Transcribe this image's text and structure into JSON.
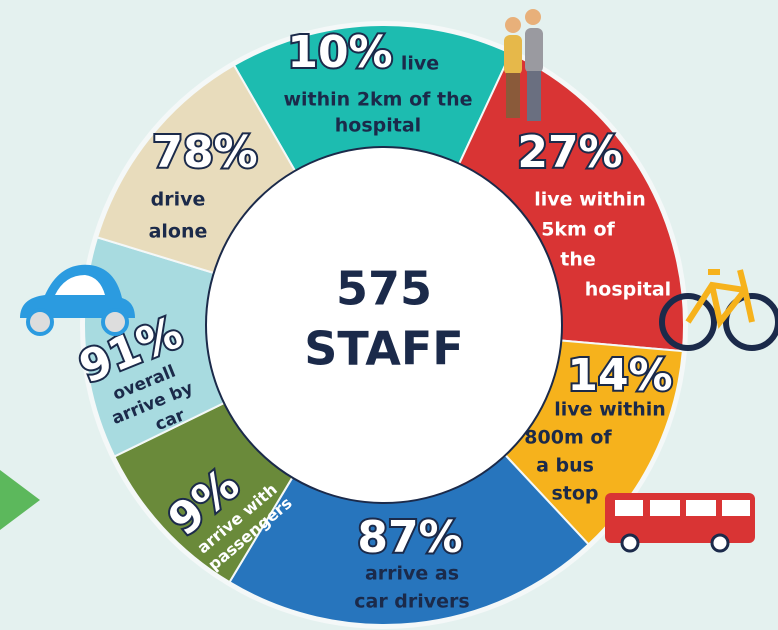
{
  "center": {
    "lines": [
      "575",
      "STAFF"
    ]
  },
  "segments": [
    {
      "percent": "10%",
      "label": [
        "live",
        "within 2km of the",
        "hospital"
      ]
    },
    {
      "percent": "27%",
      "label": [
        "live within",
        "5km of",
        "the",
        "hospital"
      ]
    },
    {
      "percent": "14%",
      "label": [
        "live within",
        "800m of",
        "a bus",
        "stop"
      ]
    },
    {
      "percent": "87%",
      "label": [
        "arrive as",
        "car drivers"
      ]
    },
    {
      "percent": "9%",
      "label": [
        "arrive with",
        "passengers"
      ]
    },
    {
      "percent": "91%",
      "label": [
        "overall",
        "arrive by",
        "car"
      ]
    },
    {
      "percent": "78%",
      "label": [
        "drive",
        "alone"
      ]
    }
  ]
}
